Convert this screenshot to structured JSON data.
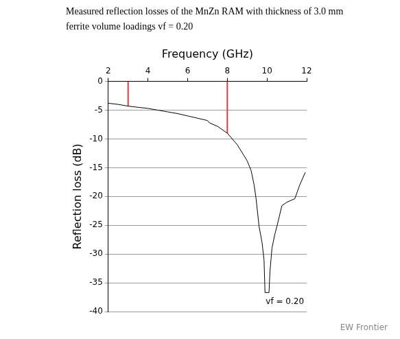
{
  "chart_data": {
    "type": "line",
    "title": [
      "Measured reflection losses of the MnZn RAM with thickness of 3.0 mm",
      "ferrite volume loadings vf = 0.20"
    ],
    "x_label": "Frequency (GHz)",
    "y_label": "Reflection loss (dB)",
    "x": [
      2.0,
      2.5,
      3.0,
      3.5,
      4.0,
      4.5,
      5.0,
      5.5,
      6.0,
      6.5,
      7.0,
      7.1,
      7.5,
      8.0,
      8.5,
      9.0,
      9.2,
      9.35,
      9.45,
      9.6,
      9.75,
      9.85,
      9.9,
      10.1,
      10.15,
      10.25,
      10.4,
      10.5,
      10.75,
      11.0,
      11.4,
      11.65,
      11.93
    ],
    "values": [
      -3.8,
      -4.0,
      -4.3,
      -4.5,
      -4.7,
      -5.0,
      -5.3,
      -5.6,
      -6.0,
      -6.4,
      -6.8,
      -7.2,
      -7.8,
      -9.0,
      -11.0,
      -13.8,
      -15.5,
      -18.0,
      -20.4,
      -25.2,
      -28.0,
      -31.0,
      -36.7,
      -36.7,
      -33.0,
      -29.0,
      -26.5,
      -25.2,
      -21.6,
      -21.0,
      -20.4,
      -18.0,
      -15.8
    ],
    "color": "#000000",
    "xlim": [
      2,
      12
    ],
    "xticks": [
      2,
      4,
      6,
      8,
      10,
      12
    ],
    "ylim": [
      -40,
      0
    ],
    "yticks": [
      0,
      -5,
      -10,
      -15,
      -20,
      -25,
      -30,
      -35,
      -40
    ],
    "grid": true,
    "reference_lines": [
      {
        "x": 3.0,
        "from": 0,
        "to": -4.3,
        "color": "#e8383d"
      },
      {
        "x": 8.0,
        "from": 0,
        "to": -9.0,
        "color": "#e8383d"
      }
    ],
    "annotations": [
      {
        "text": "vf = 0.20",
        "x": 10.9,
        "y": -38.3
      }
    ]
  },
  "watermark": "EW Frontier"
}
